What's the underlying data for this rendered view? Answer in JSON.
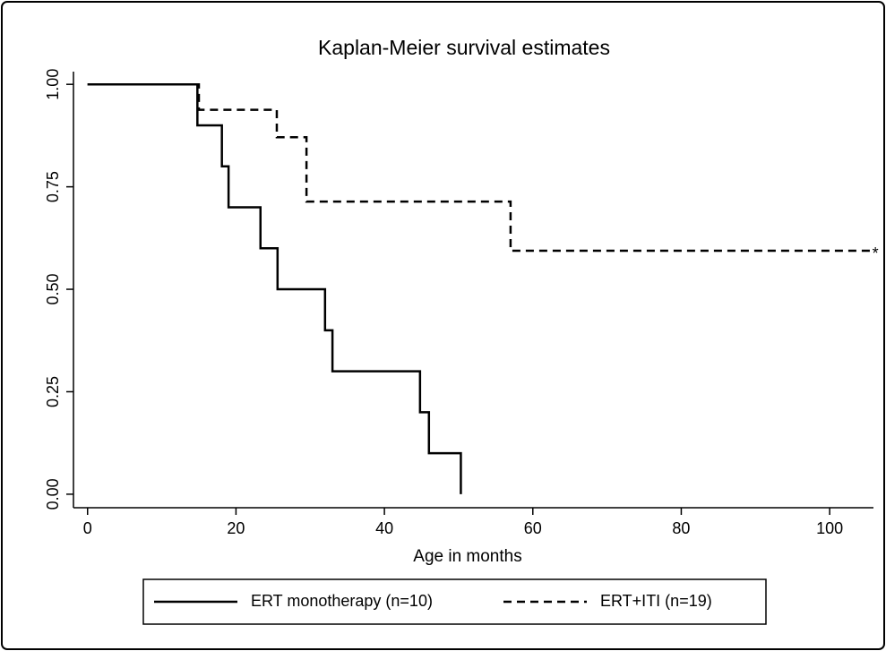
{
  "chart_data": {
    "type": "step",
    "title": "Kaplan-Meier survival estimates",
    "x_label": "Age in months",
    "series": [
      {
        "name": "ERT monotherapy (n=10)",
        "color": "#000000",
        "dash": "none",
        "x": [
          0,
          14.8,
          18.1,
          19,
          23.3,
          25.6,
          32,
          33,
          44.8,
          46,
          50.3
        ],
        "values": [
          1,
          0.9,
          0.8,
          0.7,
          0.6,
          0.5,
          0.4,
          0.3,
          0.2,
          0.1,
          0
        ]
      },
      {
        "name": "ERT+ITI (n=19)",
        "color": "#000000",
        "dash": "9,6",
        "x": [
          0,
          15,
          25.5,
          29.5,
          57,
          105.5
        ],
        "values": [
          1,
          0.938,
          0.871,
          0.714,
          0.594,
          0.594
        ]
      }
    ],
    "annotations": [
      {
        "text": "*",
        "x": 105.5,
        "y": 0.594
      }
    ],
    "xlim": [
      -1.9,
      105.9
    ],
    "ylim": [
      -0.033,
      1.031
    ],
    "xticks": [
      0,
      20,
      40,
      60,
      80,
      100
    ],
    "yticks": [
      {
        "value": 0,
        "label": "0.00"
      },
      {
        "value": 0.25,
        "label": "0.25"
      },
      {
        "value": 0.5,
        "label": "0.50"
      },
      {
        "value": 0.75,
        "label": "0.75"
      },
      {
        "value": 1,
        "label": "1.00"
      }
    ],
    "grid": false,
    "legend": "bottom"
  }
}
